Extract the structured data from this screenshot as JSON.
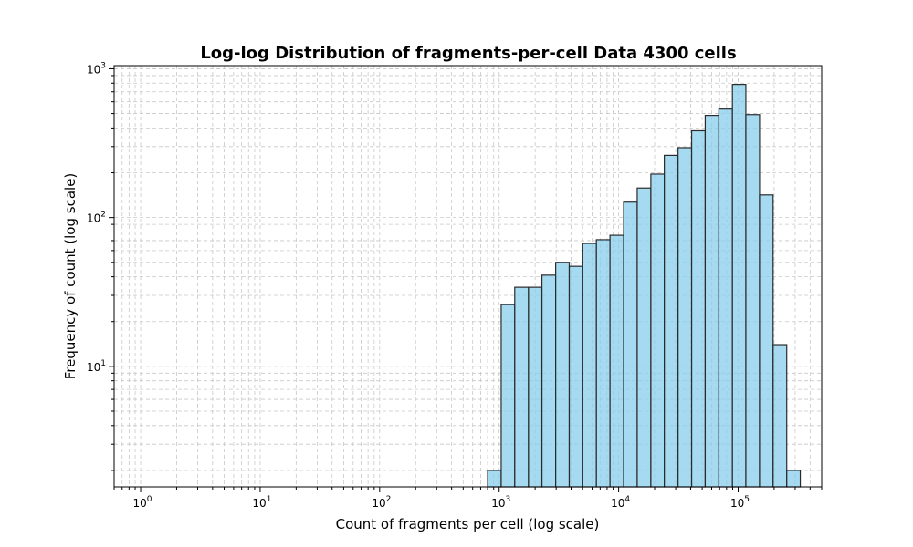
{
  "chart_data": {
    "type": "bar",
    "title": "Log-log Distribution of fragments-per-cell Data 4300 cells",
    "xlabel": "Count of fragments per cell (log scale)",
    "ylabel": "Frequency of count (log scale)",
    "x_scale": "log",
    "y_scale": "log",
    "xlim": [
      0.6,
      500000
    ],
    "ylim": [
      1.55,
      1050
    ],
    "grid": true,
    "bar_color": "#87CEEB",
    "bar_edge_color": "#2b2b2b",
    "x_tick_labels": [
      {
        "base": "10",
        "exp": "0",
        "value": 1
      },
      {
        "base": "10",
        "exp": "1",
        "value": 10
      },
      {
        "base": "10",
        "exp": "2",
        "value": 100
      },
      {
        "base": "10",
        "exp": "3",
        "value": 1000
      },
      {
        "base": "10",
        "exp": "4",
        "value": 10000
      },
      {
        "base": "10",
        "exp": "5",
        "value": 100000
      }
    ],
    "y_tick_labels": [
      {
        "base": "10",
        "exp": "1",
        "value": 10
      },
      {
        "base": "10",
        "exp": "2",
        "value": 100
      },
      {
        "base": "10",
        "exp": "3",
        "value": 1000
      }
    ],
    "bins": [
      {
        "x_left": 800,
        "x_right": 1040,
        "value": 2
      },
      {
        "x_left": 1040,
        "x_right": 1350,
        "value": 26
      },
      {
        "x_left": 1350,
        "x_right": 1760,
        "value": 34
      },
      {
        "x_left": 1760,
        "x_right": 2280,
        "value": 34
      },
      {
        "x_left": 2280,
        "x_right": 2970,
        "value": 41
      },
      {
        "x_left": 2970,
        "x_right": 3860,
        "value": 50
      },
      {
        "x_left": 3860,
        "x_right": 5010,
        "value": 47
      },
      {
        "x_left": 5010,
        "x_right": 6510,
        "value": 67
      },
      {
        "x_left": 6510,
        "x_right": 8460,
        "value": 71
      },
      {
        "x_left": 8460,
        "x_right": 11000,
        "value": 76
      },
      {
        "x_left": 11000,
        "x_right": 14300,
        "value": 127
      },
      {
        "x_left": 14300,
        "x_right": 18600,
        "value": 158
      },
      {
        "x_left": 18600,
        "x_right": 24100,
        "value": 196
      },
      {
        "x_left": 24100,
        "x_right": 31400,
        "value": 262
      },
      {
        "x_left": 31400,
        "x_right": 40800,
        "value": 295
      },
      {
        "x_left": 40800,
        "x_right": 53000,
        "value": 383
      },
      {
        "x_left": 53000,
        "x_right": 68900,
        "value": 486
      },
      {
        "x_left": 68900,
        "x_right": 89500,
        "value": 536
      },
      {
        "x_left": 89500,
        "x_right": 116000,
        "value": 785
      },
      {
        "x_left": 116000,
        "x_right": 151000,
        "value": 492
      },
      {
        "x_left": 151000,
        "x_right": 196000,
        "value": 142
      },
      {
        "x_left": 196000,
        "x_right": 255000,
        "value": 14
      },
      {
        "x_left": 255000,
        "x_right": 331000,
        "value": 2
      }
    ]
  }
}
